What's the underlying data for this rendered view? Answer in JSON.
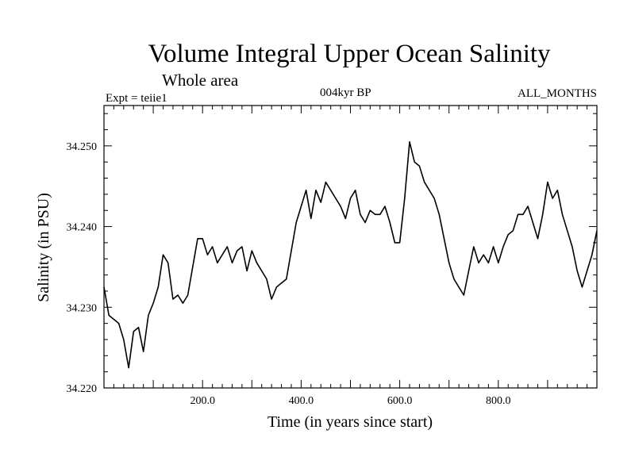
{
  "header": {
    "title": "Volume Integral Upper Ocean Salinity",
    "subtitle": "Whole area",
    "experiment": "Expt = teiie1",
    "period": "004kyr BP",
    "months": "ALL_MONTHS"
  },
  "chart_data": {
    "type": "line",
    "title": "Volume Integral Upper Ocean Salinity",
    "subtitle": "Whole area",
    "xlabel": "Time (in years since start)",
    "ylabel": "Salinity (in PSU)",
    "xlim": [
      0,
      1000
    ],
    "ylim": [
      34.22,
      34.255
    ],
    "x_ticks": [
      200,
      400,
      600,
      800
    ],
    "x_tick_labels": [
      "200.0",
      "400.0",
      "600.0",
      "800.0"
    ],
    "y_ticks": [
      34.22,
      34.23,
      34.24,
      34.25
    ],
    "y_tick_labels": [
      "34.220",
      "34.230",
      "34.240",
      "34.250"
    ],
    "grid": false,
    "series": [
      {
        "color": "#000000",
        "x": [
          0,
          10,
          20,
          30,
          40,
          50,
          60,
          70,
          80,
          90,
          100,
          110,
          120,
          130,
          140,
          150,
          160,
          170,
          180,
          190,
          200,
          210,
          220,
          230,
          240,
          250,
          260,
          270,
          280,
          290,
          300,
          310,
          320,
          330,
          340,
          350,
          360,
          370,
          380,
          390,
          400,
          410,
          420,
          430,
          440,
          450,
          460,
          470,
          480,
          490,
          500,
          510,
          520,
          530,
          540,
          550,
          560,
          570,
          580,
          590,
          600,
          610,
          620,
          630,
          640,
          650,
          660,
          670,
          680,
          690,
          700,
          710,
          720,
          730,
          740,
          750,
          760,
          770,
          780,
          790,
          800,
          810,
          820,
          830,
          840,
          850,
          860,
          870,
          880,
          890,
          900,
          910,
          920,
          930,
          940,
          950,
          960,
          970,
          980,
          990,
          1000
        ],
        "values": [
          34.2325,
          34.229,
          34.2285,
          34.228,
          34.226,
          34.2225,
          34.227,
          34.2275,
          34.2245,
          34.229,
          34.2305,
          34.2325,
          34.2365,
          34.2355,
          34.231,
          34.2315,
          34.2305,
          34.2315,
          34.235,
          34.2385,
          34.2385,
          34.2365,
          34.2375,
          34.2355,
          34.2365,
          34.2375,
          34.2355,
          34.237,
          34.2375,
          34.2345,
          34.237,
          34.2355,
          34.2345,
          34.2335,
          34.231,
          34.2325,
          34.233,
          34.2335,
          34.237,
          34.2405,
          34.2425,
          34.2445,
          34.241,
          34.2445,
          34.243,
          34.2455,
          34.2445,
          34.2435,
          34.2425,
          34.241,
          34.2435,
          34.2445,
          34.2415,
          34.2405,
          34.242,
          34.2415,
          34.2415,
          34.2425,
          34.2405,
          34.238,
          34.238,
          34.2435,
          34.2505,
          34.248,
          34.2475,
          34.2455,
          34.2445,
          34.2435,
          34.2415,
          34.2385,
          34.2355,
          34.2335,
          34.2325,
          34.2315,
          34.2345,
          34.2375,
          34.2355,
          34.2365,
          34.2355,
          34.2375,
          34.2355,
          34.2375,
          34.239,
          34.2395,
          34.2415,
          34.2415,
          34.2425,
          34.2405,
          34.2385,
          34.2415,
          34.2455,
          34.2435,
          34.2445,
          34.2415,
          34.2395,
          34.2375,
          34.2345,
          34.2325,
          34.2345,
          34.2365,
          34.2395
        ]
      }
    ]
  }
}
